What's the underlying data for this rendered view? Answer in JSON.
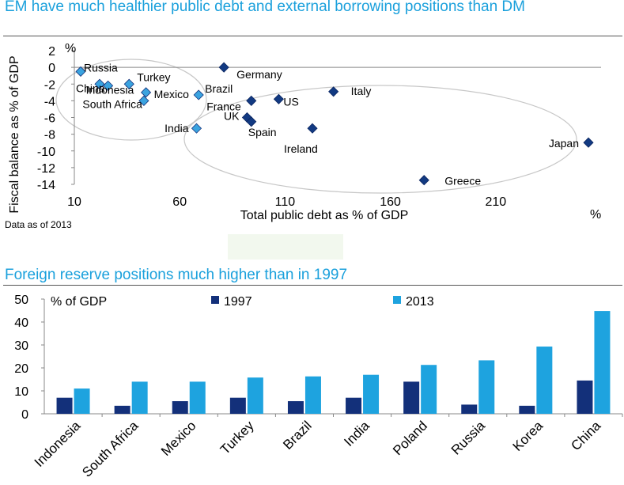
{
  "titles": {
    "scatter": "EM have much healthier public debt and external borrowing positions than DM",
    "bars": "Foreign reserve positions much higher than in 1997"
  },
  "note": "Data as of 2013",
  "colors": {
    "title": "#1aa0dc",
    "em_marker": "#3aa3df",
    "dm_marker": "#123a82",
    "bar_1997": "#13307a",
    "bar_2013": "#1ea3df",
    "ellipse": "#c7c7c7"
  },
  "chart_data": [
    {
      "type": "scatter",
      "title": "EM have much healthier public debt and external borrowing positions than DM",
      "xlabel": "Total public debt as % of GDP",
      "ylabel": "Fiscal balance as % of GDP",
      "x_unit": "%",
      "y_unit": "%",
      "xlim": [
        10,
        260
      ],
      "ylim": [
        -14,
        2
      ],
      "xticks": [
        10,
        60,
        110,
        160,
        210
      ],
      "yticks": [
        2,
        0,
        -2,
        -4,
        -6,
        -8,
        -10,
        -12,
        -14
      ],
      "grid": false,
      "points": [
        {
          "label": "Russia",
          "x": 13,
          "y": -0.5,
          "group": "EM"
        },
        {
          "label": "China",
          "x": 22,
          "y": -2,
          "group": "EM"
        },
        {
          "label": "Indonesia",
          "x": 26,
          "y": -2.2,
          "group": "EM"
        },
        {
          "label": "Turkey",
          "x": 36,
          "y": -2,
          "group": "EM"
        },
        {
          "label": "Mexico",
          "x": 44,
          "y": -3,
          "group": "EM"
        },
        {
          "label": "South Africa",
          "x": 43,
          "y": -4,
          "group": "EM"
        },
        {
          "label": "Brazil",
          "x": 69,
          "y": -3.3,
          "group": "EM"
        },
        {
          "label": "India",
          "x": 68,
          "y": -7.3,
          "group": "EM"
        },
        {
          "label": "Germany",
          "x": 81,
          "y": 0,
          "group": "DM"
        },
        {
          "label": "France",
          "x": 94,
          "y": -4,
          "group": "DM"
        },
        {
          "label": "US",
          "x": 107,
          "y": -3.8,
          "group": "DM"
        },
        {
          "label": "UK",
          "x": 92,
          "y": -6,
          "group": "DM"
        },
        {
          "label": "Spain",
          "x": 94,
          "y": -6.5,
          "group": "DM"
        },
        {
          "label": "Italy",
          "x": 133,
          "y": -2.9,
          "group": "DM"
        },
        {
          "label": "Ireland",
          "x": 123,
          "y": -7.3,
          "group": "DM"
        },
        {
          "label": "Greece",
          "x": 176,
          "y": -13.5,
          "group": "DM"
        },
        {
          "label": "Japan",
          "x": 254,
          "y": -9,
          "group": "DM"
        }
      ]
    },
    {
      "type": "bar",
      "title": "Foreign reserve positions much higher than in 1997",
      "unit_label": "% of GDP",
      "categories": [
        "Indonesia",
        "South Africa",
        "Mexico",
        "Turkey",
        "Brazil",
        "India",
        "Poland",
        "Russia",
        "Korea",
        "China"
      ],
      "series": [
        {
          "name": "1997",
          "values": [
            7,
            3.5,
            5.5,
            7,
            5.5,
            7,
            14,
            4,
            3.5,
            14.5
          ]
        },
        {
          "name": "2013",
          "values": [
            11,
            14,
            14,
            15.8,
            16.3,
            17,
            21.3,
            23.3,
            29.3,
            44.8
          ]
        }
      ],
      "ylim": [
        0,
        50
      ],
      "yticks": [
        0,
        10,
        20,
        30,
        40,
        50
      ],
      "legend_position": "top",
      "grid": false
    }
  ]
}
